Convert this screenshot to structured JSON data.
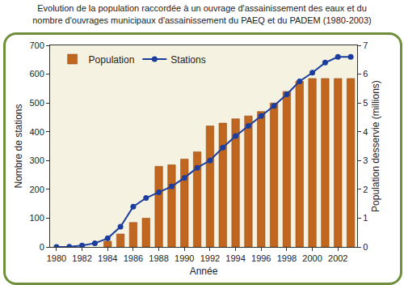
{
  "chart_data": {
    "type": "bar",
    "title": "Evolution de la population raccordée à un ouvrage d'assainissement des eaux et du\nnombre d'ouvrages municipaux d'assainissement du PAEQ et du PADEM (1980-2003)",
    "x_label": "Année",
    "y_label": "Nombre de stations",
    "y2_label": "Population desservie (millions)",
    "x": [
      1980,
      1981,
      1982,
      1983,
      1984,
      1985,
      1986,
      1987,
      1988,
      1989,
      1990,
      1991,
      1992,
      1993,
      1994,
      1995,
      1996,
      1997,
      1998,
      1999,
      2000,
      2001,
      2002,
      2003
    ],
    "series": [
      {
        "name": "Population",
        "type": "bar",
        "axis": "y2",
        "color": "#c0661e",
        "values": [
          null,
          null,
          null,
          null,
          0.2,
          0.45,
          0.85,
          1.0,
          2.8,
          2.85,
          3.05,
          3.3,
          4.2,
          4.3,
          4.45,
          4.55,
          4.7,
          5.0,
          5.4,
          5.75,
          5.85,
          5.85,
          5.85,
          5.85
        ]
      },
      {
        "name": "Stations",
        "type": "line",
        "color": "#1b3d9e",
        "marker": "circle",
        "line_style": "solid",
        "values": [
          0,
          1,
          5,
          13,
          30,
          70,
          140,
          170,
          190,
          210,
          240,
          275,
          300,
          345,
          385,
          420,
          455,
          490,
          530,
          575,
          605,
          640,
          660,
          660
        ]
      }
    ],
    "xlim": [
      1979.5,
      2003.5
    ],
    "xticks": [
      1980,
      1982,
      1984,
      1986,
      1988,
      1990,
      1992,
      1994,
      1996,
      1998,
      2000,
      2002
    ],
    "ylim": [
      0,
      700
    ],
    "yticks": [
      0,
      100,
      200,
      300,
      400,
      500,
      600,
      700
    ],
    "y2lim": [
      0,
      7
    ],
    "y2ticks": [
      0,
      1,
      2,
      3,
      4,
      5,
      6,
      7
    ],
    "grid": false,
    "legend": "top-left"
  }
}
